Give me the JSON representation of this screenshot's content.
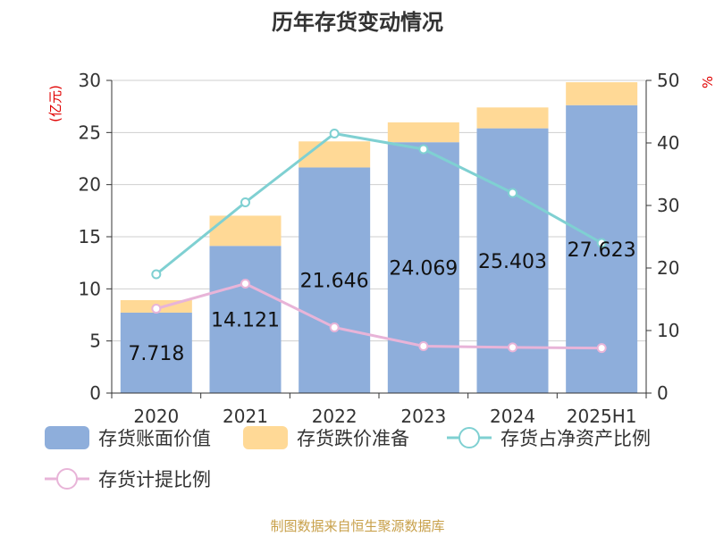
{
  "chart_data": {
    "type": "bar",
    "title": "历年存货变动情况",
    "categories": [
      "2020",
      "2021",
      "2022",
      "2023",
      "2024",
      "2025H1"
    ],
    "y_left": {
      "unit": "(亿元)",
      "min": 0,
      "max": 30,
      "ticks": [
        0,
        5,
        10,
        15,
        20,
        25,
        30
      ]
    },
    "y_right": {
      "unit": "%",
      "min": 0,
      "max": 50,
      "ticks": [
        0,
        10,
        20,
        30,
        40,
        50
      ]
    },
    "series": [
      {
        "name": "存货账面价值",
        "type": "bar",
        "axis": "left",
        "stack": "inv",
        "color": "#8eaedb",
        "values": [
          7.718,
          14.121,
          21.646,
          24.069,
          25.403,
          27.623
        ],
        "labels": [
          "7.718",
          "14.121",
          "21.646",
          "24.069",
          "25.403",
          "27.623"
        ]
      },
      {
        "name": "存货跌价准备",
        "type": "bar",
        "axis": "left",
        "stack": "inv",
        "color": "#ffd996",
        "values": [
          1.2,
          2.9,
          2.5,
          1.9,
          2.0,
          2.2
        ]
      },
      {
        "name": "存货占净资产比例",
        "type": "line",
        "axis": "right",
        "color": "#7fd0d2",
        "values": [
          19.0,
          30.5,
          41.5,
          39.0,
          32.0,
          24.0
        ]
      },
      {
        "name": "存货计提比例",
        "type": "line",
        "axis": "right",
        "color": "#e8b4d8",
        "values": [
          13.5,
          17.5,
          10.5,
          7.5,
          7.3,
          7.2
        ]
      }
    ],
    "grid": true,
    "legend_position": "bottom"
  },
  "source": "制图数据来自恒生聚源数据库"
}
